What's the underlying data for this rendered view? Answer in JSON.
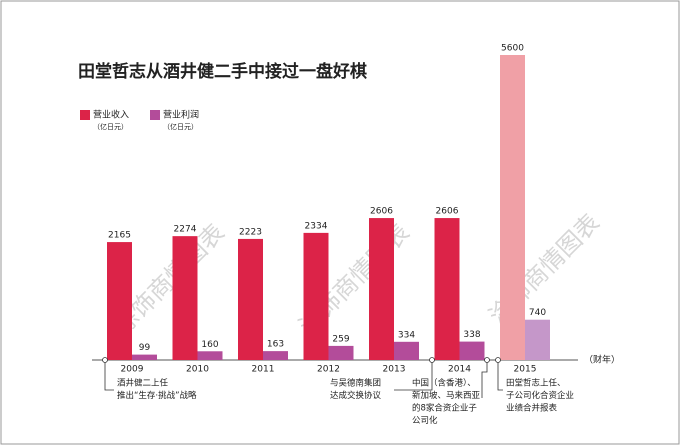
{
  "chart_data": {
    "type": "bar",
    "title": "田堂哲志从酒井健二手中接过一盘好棋",
    "watermark": "涂饰商情图表",
    "x_axis_label": "（财年）",
    "categories": [
      "2009",
      "2010",
      "2011",
      "2012",
      "2013",
      "2014",
      "2015"
    ],
    "series": [
      {
        "name": "营业收入",
        "unit": "（亿日元）",
        "color": "#dc2348",
        "colors": [
          "#dc2348",
          "#dc2348",
          "#dc2348",
          "#dc2348",
          "#dc2348",
          "#dc2348",
          "#f0a0a6"
        ],
        "values": [
          2165,
          2274,
          2223,
          2334,
          2606,
          2606,
          5600
        ]
      },
      {
        "name": "营业利润",
        "unit": "（亿日元）",
        "color": "#b34c9a",
        "colors": [
          "#b34c9a",
          "#b34c9a",
          "#b34c9a",
          "#b34c9a",
          "#b34c9a",
          "#b34c9a",
          "#c597c9"
        ],
        "values": [
          99,
          160,
          163,
          259,
          334,
          338,
          740
        ]
      }
    ],
    "annotations": [
      {
        "lines": [
          "酒井健二上任",
          "推出“生存·挑战”战略"
        ]
      },
      {
        "lines": [
          "与吴德南集团",
          "达成交换协议"
        ]
      },
      {
        "lines": [
          "中国（含香港）、",
          "新加坡、马来西亚",
          "的8家合资企业子",
          "公司化"
        ]
      },
      {
        "lines": [
          "田堂哲志上任、",
          "子公司化合资企业",
          "业绩合并报表"
        ]
      }
    ]
  }
}
